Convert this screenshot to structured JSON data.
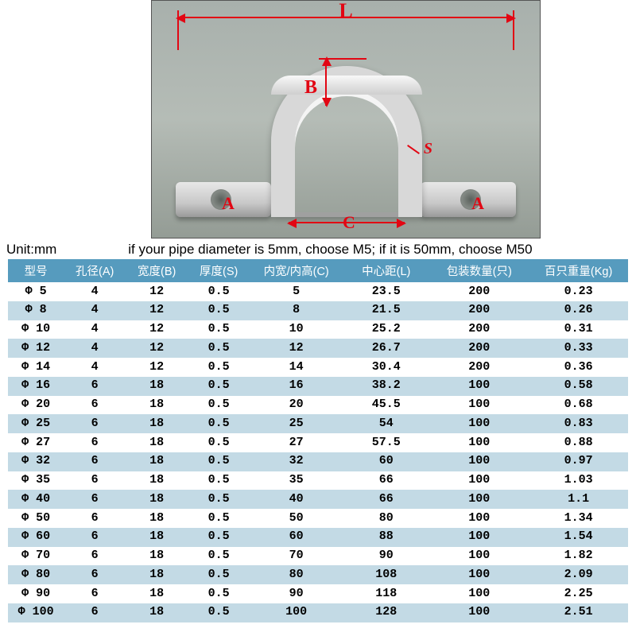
{
  "diagram": {
    "labels": {
      "L": "L",
      "B": "B",
      "C": "C",
      "S": "S",
      "A": "A"
    },
    "annotation_color": "#e20613"
  },
  "caption": {
    "unit": "Unit:mm",
    "note": "if your pipe diameter is 5mm, choose M5; if it is 50mm, choose M50"
  },
  "table": {
    "header_bg": "#569bbe",
    "header_fg": "#ffffff",
    "row_alt_bg": "#c3dae5",
    "columns": [
      "型号",
      "孔径(A)",
      "宽度(B)",
      "厚度(S)",
      "内宽/内高(C)",
      "中心距(L)",
      "包装数量(只)",
      "百只重量(Kg)"
    ],
    "rows": [
      [
        "Φ 5",
        "4",
        "12",
        "0.5",
        "5",
        "23.5",
        "200",
        "0.23"
      ],
      [
        "Φ 8",
        "4",
        "12",
        "0.5",
        "8",
        "21.5",
        "200",
        "0.26"
      ],
      [
        "Φ 10",
        "4",
        "12",
        "0.5",
        "10",
        "25.2",
        "200",
        "0.31"
      ],
      [
        "Φ 12",
        "4",
        "12",
        "0.5",
        "12",
        "26.7",
        "200",
        "0.33"
      ],
      [
        "Φ 14",
        "4",
        "12",
        "0.5",
        "14",
        "30.4",
        "200",
        "0.36"
      ],
      [
        "Φ 16",
        "6",
        "18",
        "0.5",
        "16",
        "38.2",
        "100",
        "0.58"
      ],
      [
        "Φ 20",
        "6",
        "18",
        "0.5",
        "20",
        "45.5",
        "100",
        "0.68"
      ],
      [
        "Φ 25",
        "6",
        "18",
        "0.5",
        "25",
        "54",
        "100",
        "0.83"
      ],
      [
        "Φ 27",
        "6",
        "18",
        "0.5",
        "27",
        "57.5",
        "100",
        "0.88"
      ],
      [
        "Φ 32",
        "6",
        "18",
        "0.5",
        "32",
        "60",
        "100",
        "0.97"
      ],
      [
        "Φ 35",
        "6",
        "18",
        "0.5",
        "35",
        "66",
        "100",
        "1.03"
      ],
      [
        "Φ 40",
        "6",
        "18",
        "0.5",
        "40",
        "66",
        "100",
        "1.1"
      ],
      [
        "Φ 50",
        "6",
        "18",
        "0.5",
        "50",
        "80",
        "100",
        "1.34"
      ],
      [
        "Φ 60",
        "6",
        "18",
        "0.5",
        "60",
        "88",
        "100",
        "1.54"
      ],
      [
        "Φ 70",
        "6",
        "18",
        "0.5",
        "70",
        "90",
        "100",
        "1.82"
      ],
      [
        "Φ 80",
        "6",
        "18",
        "0.5",
        "80",
        "108",
        "100",
        "2.09"
      ],
      [
        "Φ 90",
        "6",
        "18",
        "0.5",
        "90",
        "118",
        "100",
        "2.25"
      ],
      [
        "Φ 100",
        "6",
        "18",
        "0.5",
        "100",
        "128",
        "100",
        "2.51"
      ]
    ]
  }
}
